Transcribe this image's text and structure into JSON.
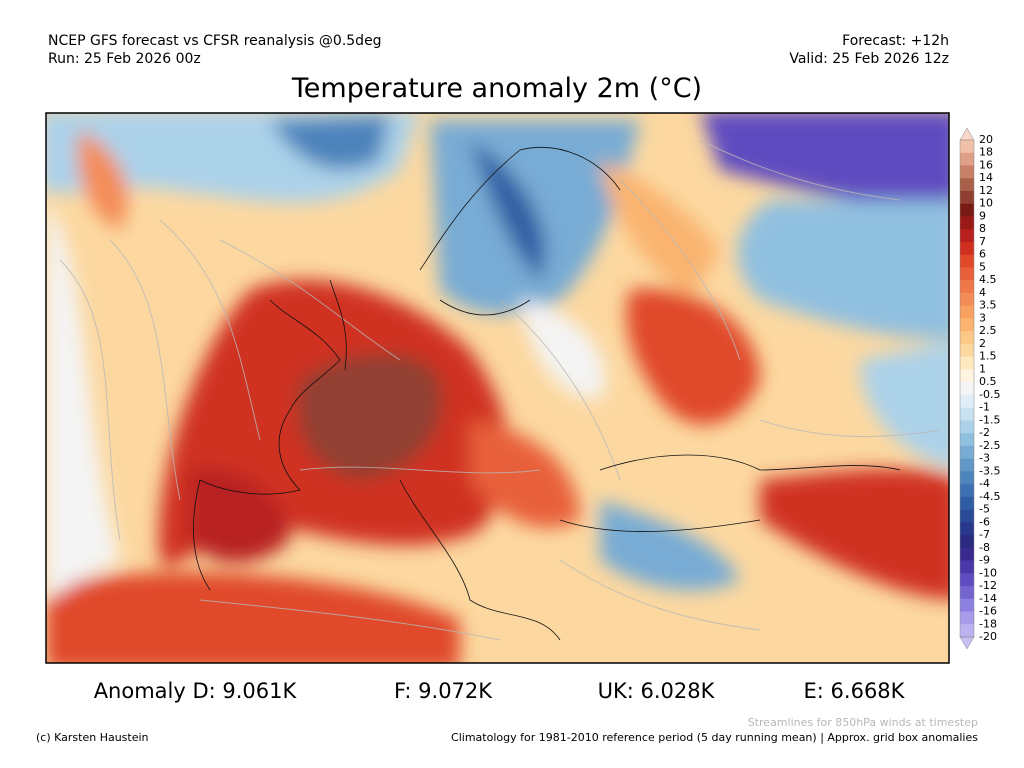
{
  "header": {
    "source": "NCEP GFS forecast vs CFSR reanalysis @0.5deg",
    "run": "Run: 25 Feb 2026 00z",
    "forecast": "Forecast: +12h",
    "valid": "Valid: 25 Feb 2026 12z",
    "title": "Temperature anomaly 2m (°C)"
  },
  "colorbar": {
    "labels": [
      "20",
      "18",
      "16",
      "14",
      "12",
      "10",
      "9",
      "8",
      "7",
      "6",
      "5",
      "4.5",
      "4",
      "3.5",
      "3",
      "2.5",
      "2",
      "1.5",
      "1",
      "0.5",
      "-0.5",
      "-1",
      "-1.5",
      "-2",
      "-2.5",
      "-3",
      "-3.5",
      "-4",
      "-4.5",
      "-5",
      "-6",
      "-7",
      "-8",
      "-9",
      "-10",
      "-12",
      "-14",
      "-16",
      "-18",
      "-20"
    ],
    "colors": [
      "#f8d8c8",
      "#f0c0a8",
      "#e0a088",
      "#c88068",
      "#a86048",
      "#904030",
      "#7a1a14",
      "#9a1a18",
      "#b82020",
      "#d03020",
      "#e04a2a",
      "#e8603a",
      "#f07848",
      "#f48c58",
      "#f8a060",
      "#fab470",
      "#fcc888",
      "#fcd8a0",
      "#fde8c0",
      "#fef4e0",
      "#f4f4f4",
      "#e0eef8",
      "#c8e2f2",
      "#acd2ea",
      "#90c0e0",
      "#78acd4",
      "#6298c8",
      "#4e84bc",
      "#3c70b0",
      "#305ea4",
      "#2a4c98",
      "#28388c",
      "#2a2a80",
      "#3a2a90",
      "#4a38a8",
      "#5e4cc0",
      "#7464d0",
      "#8c80e0",
      "#a89cea",
      "#bcb2f0",
      "#c8c0f4"
    ]
  },
  "anomalies": [
    "Anomaly D: 9.061K",
    "F: 9.072K",
    "UK: 6.028K",
    "E: 6.668K"
  ],
  "footer": {
    "streamlines": "Streamlines for 850hPa winds at timestep",
    "credit": "(c) Karsten Haustein",
    "climatology": "Climatology for 1981-2010 reference period (5 day running mean) | Approx. grid box anomalies"
  }
}
